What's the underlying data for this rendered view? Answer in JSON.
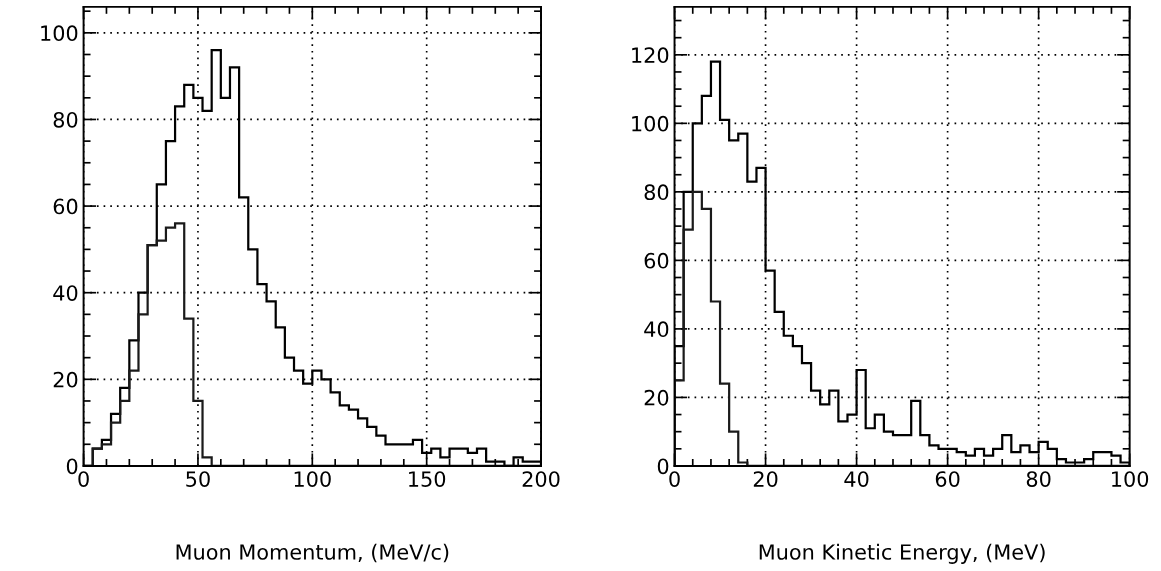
{
  "chart_data": [
    {
      "type": "histogram",
      "xlabel": "Muon Momentum, (MeV/c)",
      "xlim": [
        0,
        200
      ],
      "ylim": [
        0,
        106
      ],
      "xticks": [
        0,
        50,
        100,
        150,
        200
      ],
      "yticks": [
        0,
        20,
        40,
        60,
        80,
        100
      ],
      "grid": true,
      "bins": [
        0,
        4,
        8,
        12,
        16,
        20,
        24,
        28,
        32,
        36,
        40,
        44,
        48,
        52,
        56,
        60,
        64,
        68,
        72,
        76,
        80,
        84,
        88,
        92,
        96,
        100,
        104,
        108,
        112,
        116,
        120,
        124,
        128,
        132,
        136,
        140,
        144,
        148,
        152,
        156,
        160,
        164,
        168,
        172,
        176,
        180,
        184,
        188,
        192,
        196,
        200
      ],
      "series": [
        {
          "color": "#000000",
          "values": [
            0,
            4,
            6,
            12,
            18,
            29,
            40,
            51,
            65,
            75,
            83,
            88,
            85,
            82,
            96,
            85,
            92,
            62,
            50,
            42,
            38,
            32,
            25,
            22,
            19,
            22,
            20,
            17,
            14,
            13,
            11,
            9,
            7,
            5,
            5,
            5,
            6,
            3,
            4,
            2,
            4,
            4,
            3,
            4,
            1,
            1,
            0,
            2,
            1,
            1
          ]
        },
        {
          "color": "#1a1a1a",
          "values": [
            0,
            4,
            5,
            10,
            15,
            22,
            35,
            51,
            52,
            55,
            56,
            34,
            15,
            2,
            0,
            0,
            0,
            0,
            0,
            0,
            0,
            0,
            0,
            0,
            0,
            0,
            0,
            0,
            0,
            0,
            0,
            0,
            0,
            0,
            0,
            0,
            0,
            0,
            0,
            0,
            0,
            0,
            0,
            0,
            0,
            0,
            0,
            0,
            0,
            0
          ]
        }
      ]
    },
    {
      "type": "histogram",
      "xlabel": "Muon Kinetic Energy, (MeV)",
      "xlim": [
        0,
        100
      ],
      "ylim": [
        0,
        134
      ],
      "xticks": [
        0,
        20,
        40,
        60,
        80,
        100
      ],
      "yticks": [
        0,
        20,
        40,
        60,
        80,
        100,
        120
      ],
      "grid": true,
      "bins": [
        0,
        2,
        4,
        6,
        8,
        10,
        12,
        14,
        16,
        18,
        20,
        22,
        24,
        26,
        28,
        30,
        32,
        34,
        36,
        38,
        40,
        42,
        44,
        46,
        48,
        50,
        52,
        54,
        56,
        58,
        60,
        62,
        64,
        66,
        68,
        70,
        72,
        74,
        76,
        78,
        80,
        82,
        84,
        86,
        88,
        90,
        92,
        94,
        96,
        98,
        100
      ],
      "series": [
        {
          "color": "#000000",
          "values": [
            35,
            80,
            100,
            108,
            118,
            101,
            95,
            97,
            83,
            87,
            57,
            45,
            38,
            35,
            30,
            22,
            18,
            22,
            13,
            15,
            28,
            11,
            15,
            10,
            9,
            9,
            19,
            9,
            6,
            5,
            5,
            4,
            3,
            5,
            3,
            5,
            9,
            4,
            6,
            4,
            7,
            5,
            2,
            1,
            1,
            2,
            4,
            4,
            3,
            1
          ]
        },
        {
          "color": "#1a1a1a",
          "values": [
            25,
            69,
            80,
            75,
            48,
            24,
            10,
            1,
            0,
            0,
            0,
            0,
            0,
            0,
            0,
            0,
            0,
            0,
            0,
            0,
            0,
            0,
            0,
            0,
            0,
            0,
            0,
            0,
            0,
            0,
            0,
            0,
            0,
            0,
            0,
            0,
            0,
            0,
            0,
            0,
            0,
            0,
            0,
            0,
            0,
            0,
            0,
            0,
            0,
            0
          ]
        }
      ]
    }
  ]
}
